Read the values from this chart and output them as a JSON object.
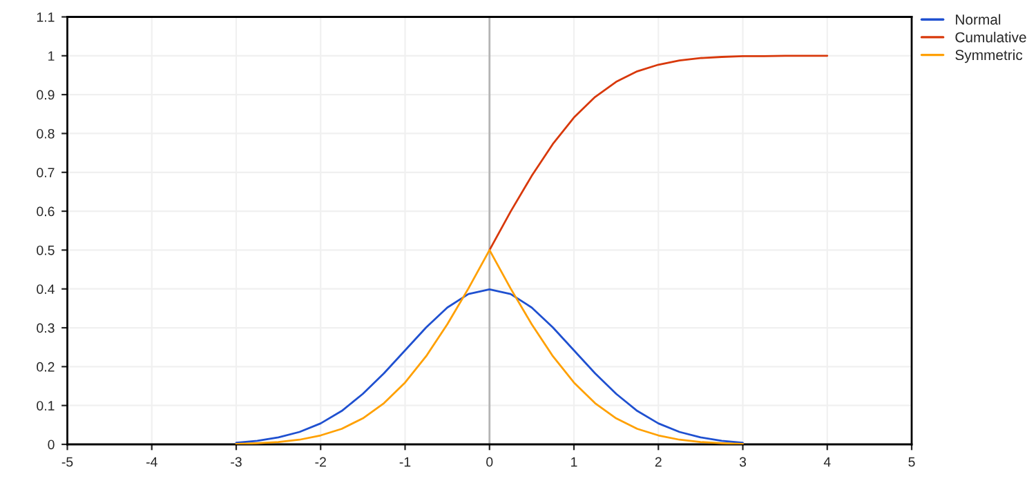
{
  "chart_data": {
    "type": "line",
    "series": [
      {
        "name": "Normal",
        "color": "#1f50d0",
        "x": [
          -3,
          -2.75,
          -2.5,
          -2.25,
          -2,
          -1.75,
          -1.5,
          -1.25,
          -1,
          -0.75,
          -0.5,
          -0.25,
          0,
          0.25,
          0.5,
          0.75,
          1,
          1.25,
          1.5,
          1.75,
          2,
          2.25,
          2.5,
          2.75,
          3
        ],
        "values": [
          0.004,
          0.009,
          0.018,
          0.032,
          0.054,
          0.086,
          0.13,
          0.183,
          0.242,
          0.301,
          0.352,
          0.387,
          0.399,
          0.387,
          0.352,
          0.301,
          0.242,
          0.183,
          0.13,
          0.086,
          0.054,
          0.032,
          0.018,
          0.009,
          0.004
        ]
      },
      {
        "name": "Cumulative",
        "color": "#d8380a",
        "x": [
          0,
          0.25,
          0.5,
          0.75,
          1,
          1.25,
          1.5,
          1.75,
          2,
          2.25,
          2.5,
          2.75,
          3,
          3.25,
          3.5,
          3.75,
          4
        ],
        "values": [
          0.5,
          0.599,
          0.691,
          0.773,
          0.841,
          0.894,
          0.933,
          0.96,
          0.977,
          0.988,
          0.994,
          0.997,
          0.999,
          0.999,
          1,
          1,
          1
        ]
      },
      {
        "name": "Symmetric",
        "color": "#ffa000",
        "x": [
          -3,
          -2.75,
          -2.5,
          -2.25,
          -2,
          -1.75,
          -1.5,
          -1.25,
          -1,
          -0.75,
          -0.5,
          -0.25,
          0,
          0.25,
          0.5,
          0.75,
          1,
          1.25,
          1.5,
          1.75,
          2,
          2.25,
          2.5,
          2.75,
          3
        ],
        "values": [
          0.001,
          0.003,
          0.006,
          0.012,
          0.023,
          0.04,
          0.067,
          0.106,
          0.159,
          0.227,
          0.309,
          0.401,
          0.5,
          0.401,
          0.309,
          0.227,
          0.159,
          0.106,
          0.067,
          0.04,
          0.023,
          0.012,
          0.006,
          0.003,
          0.001
        ]
      }
    ],
    "xlim": [
      -5,
      5
    ],
    "xticks": [
      -5,
      -4,
      -3,
      -2,
      -1,
      0,
      1,
      2,
      3,
      4,
      5
    ],
    "ylim": [
      0,
      1.1
    ],
    "yticks": [
      0,
      0.1,
      0.2,
      0.3,
      0.4,
      0.5,
      0.6,
      0.7,
      0.8,
      0.9,
      1,
      1.1
    ],
    "ref_lines": [
      {
        "axis": "x",
        "value": 0,
        "color": "#b4b4b4"
      }
    ],
    "grid": true,
    "legend": "top right",
    "marker": "none",
    "line_style": "solid"
  }
}
